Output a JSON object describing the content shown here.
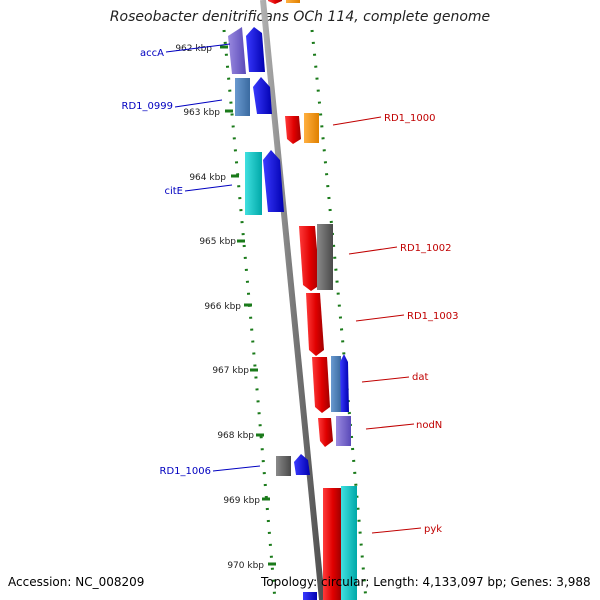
{
  "title": "Roseobacter denitrificans OCh 114, complete genome",
  "footer": {
    "accession": "Accession: NC_008209",
    "topology": "Topology: circular; Length: 4,133,097 bp; Genes: 3,988"
  },
  "ticks": [
    "962 kbp",
    "963 kbp",
    "964 kbp",
    "965 kbp",
    "966 kbp",
    "967 kbp",
    "968 kbp",
    "969 kbp",
    "970 kbp"
  ],
  "labels": {
    "accA": "accA",
    "RD1_0999": "RD1_0999",
    "citE": "citE",
    "RD1_1006": "RD1_1006",
    "RD1_1000": "RD1_1000",
    "RD1_1002": "RD1_1002",
    "RD1_1003": "RD1_1003",
    "dat": "dat",
    "nodN": "nodN",
    "pyk": "pyk"
  },
  "colors": {
    "left_label": "#0000c0",
    "right_label": "#c00000",
    "dots": "#1a7a1a",
    "backbone": "#8a8a8a"
  }
}
